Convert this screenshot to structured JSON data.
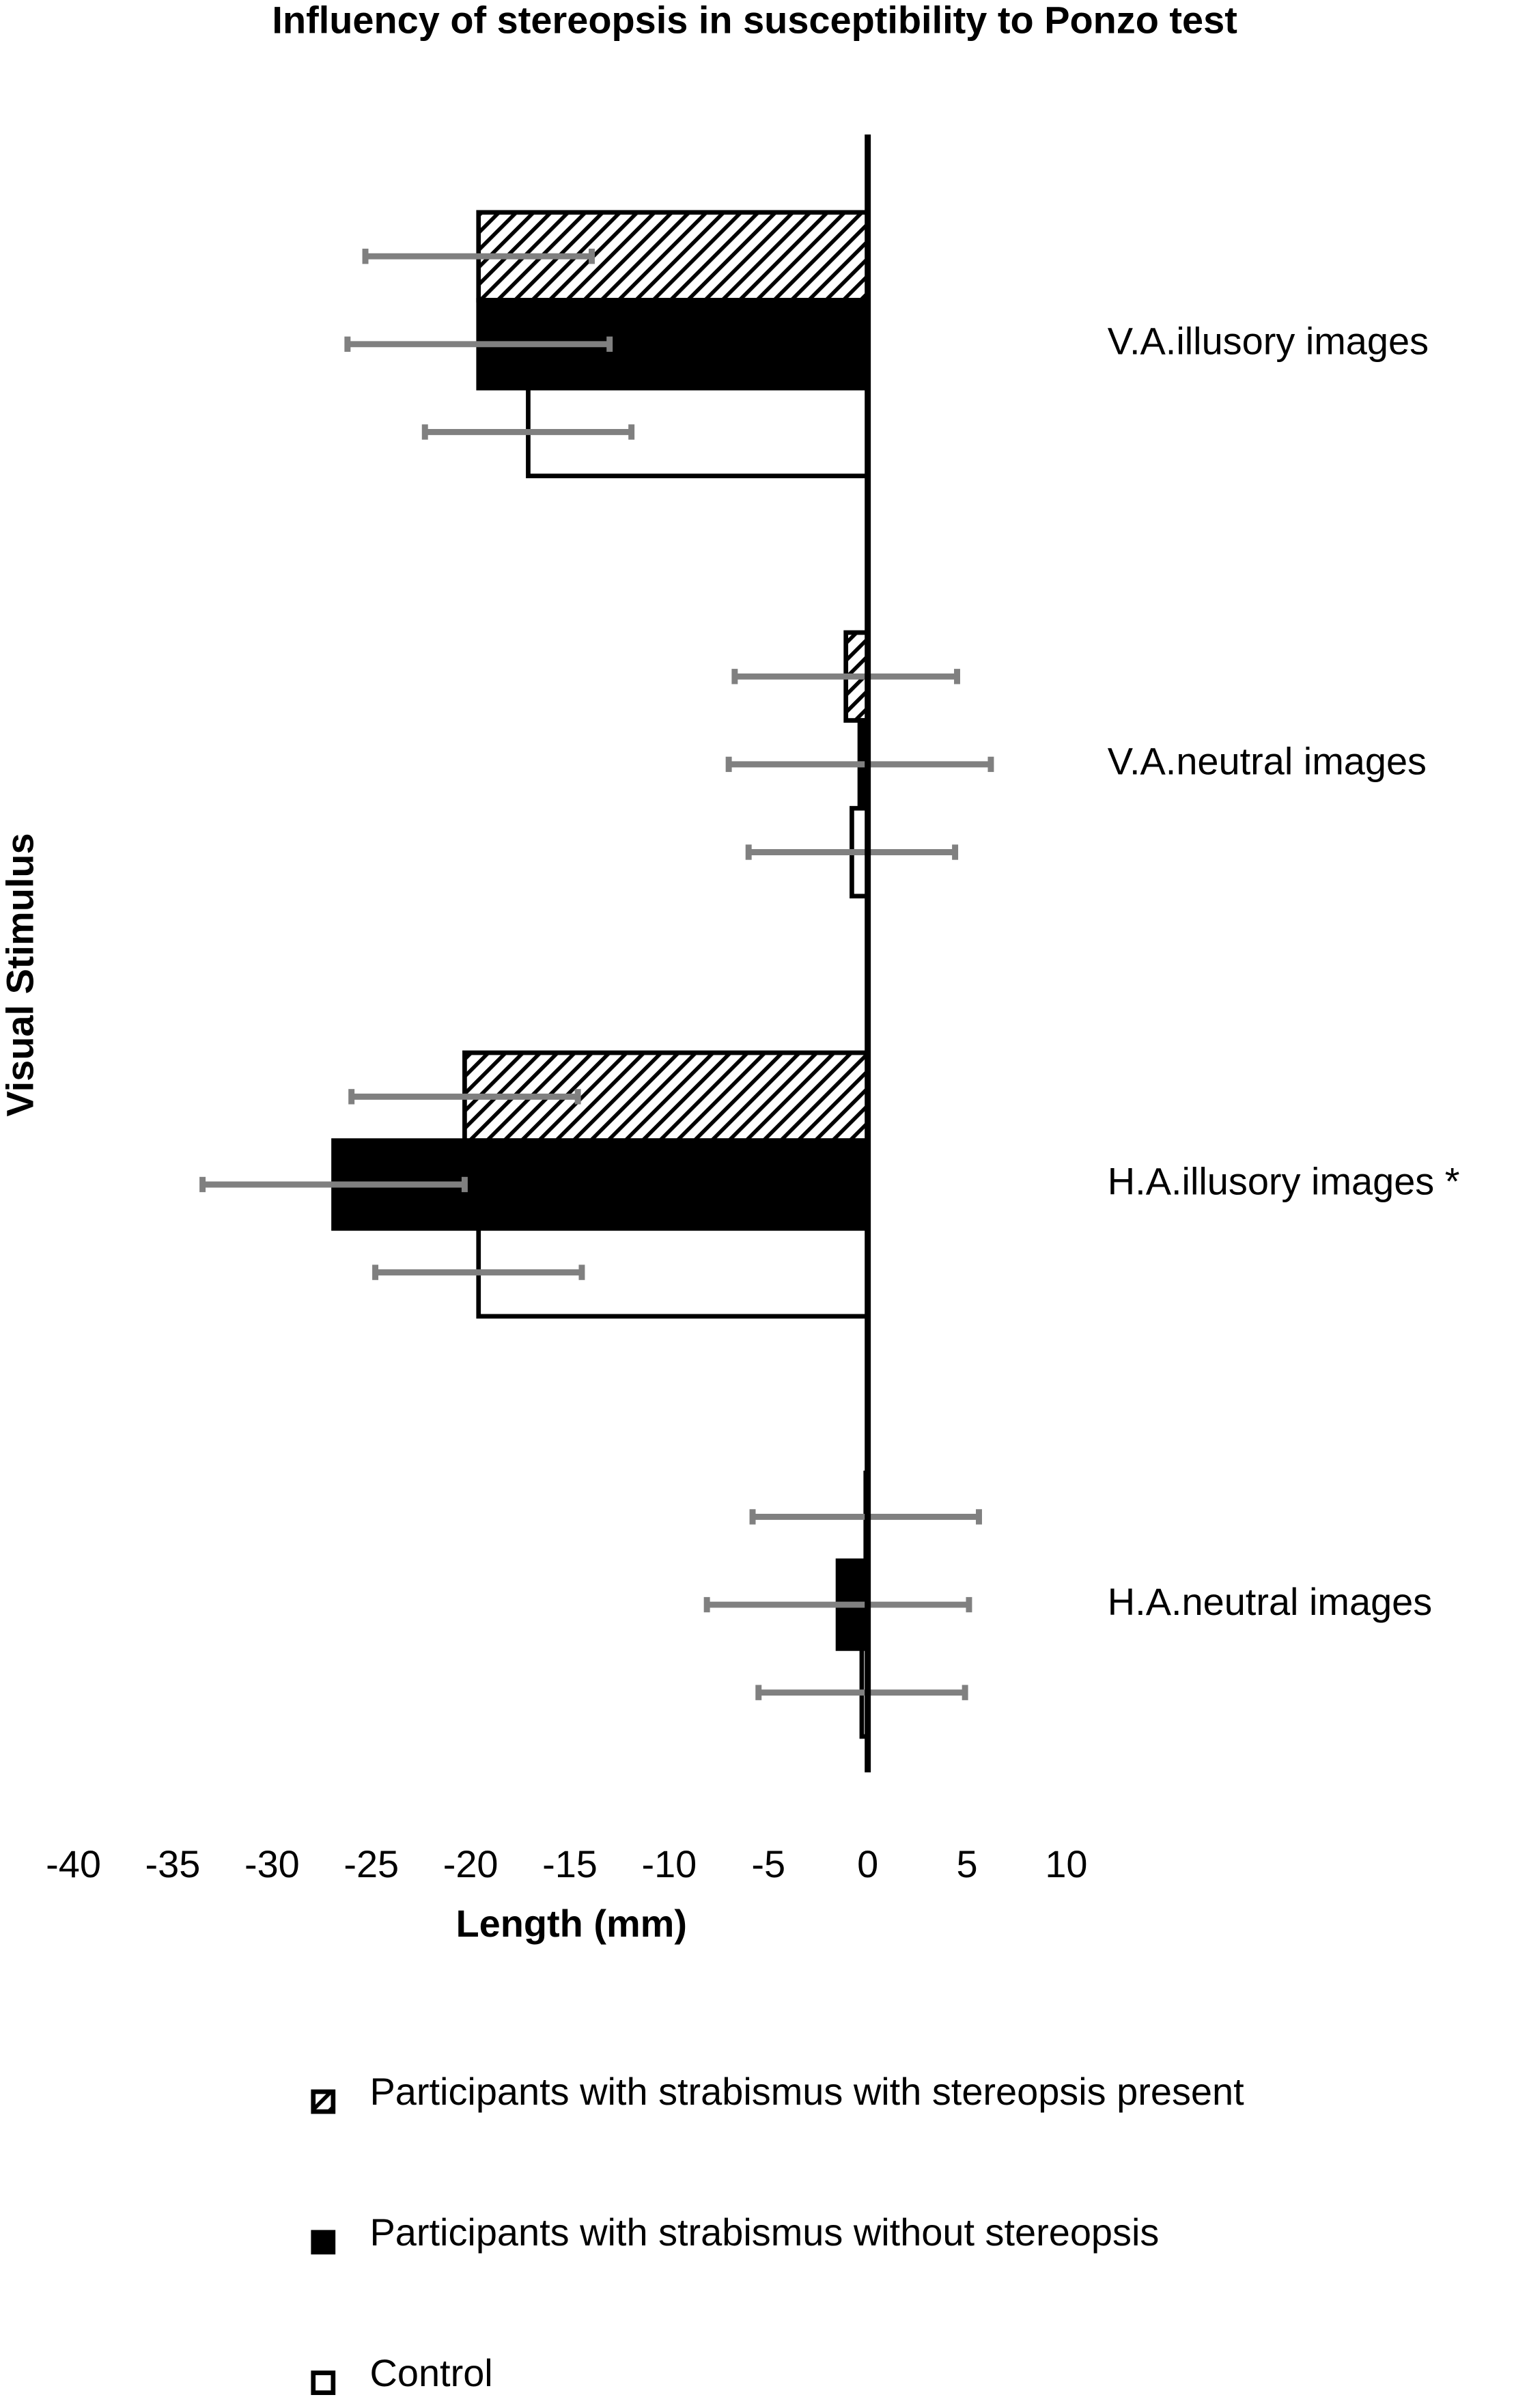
{
  "chart_data": {
    "type": "hbar",
    "title": "Influency of stereopsis in susceptibility to Ponzo test",
    "xlabel": "Length (mm)",
    "ylabel": "Visual Stimulus",
    "categories": [
      "V.A.illusory images",
      "V.A.neutral images",
      "H.A.illusory images *",
      "H.A.neutral images"
    ],
    "series": [
      {
        "name": "Participants with strabismus with stereopsis present",
        "color": "#000000",
        "hatch": true,
        "values": [
          -19.6,
          -1.1,
          -20.3,
          -0.1
        ],
        "errors": [
          5.7,
          5.6,
          5.7,
          5.7
        ]
      },
      {
        "name": "Participants with strabismus without stereopsis",
        "color": "#000000",
        "hatch": false,
        "values": [
          -19.6,
          -0.4,
          -26.9,
          -1.5
        ],
        "errors": [
          6.6,
          6.6,
          6.6,
          6.6
        ]
      },
      {
        "name": "Control",
        "color": "#ffffff",
        "hatch": false,
        "values": [
          -17.1,
          -0.8,
          -19.6,
          -0.3
        ],
        "errors": [
          5.2,
          5.2,
          5.2,
          5.2
        ]
      }
    ],
    "error_color": "#808080",
    "xlim": [
      -40,
      10
    ],
    "xticks": [
      -40,
      -35,
      -30,
      -25,
      -20,
      -15,
      -10,
      -5,
      0,
      5,
      10
    ],
    "grid": false
  }
}
